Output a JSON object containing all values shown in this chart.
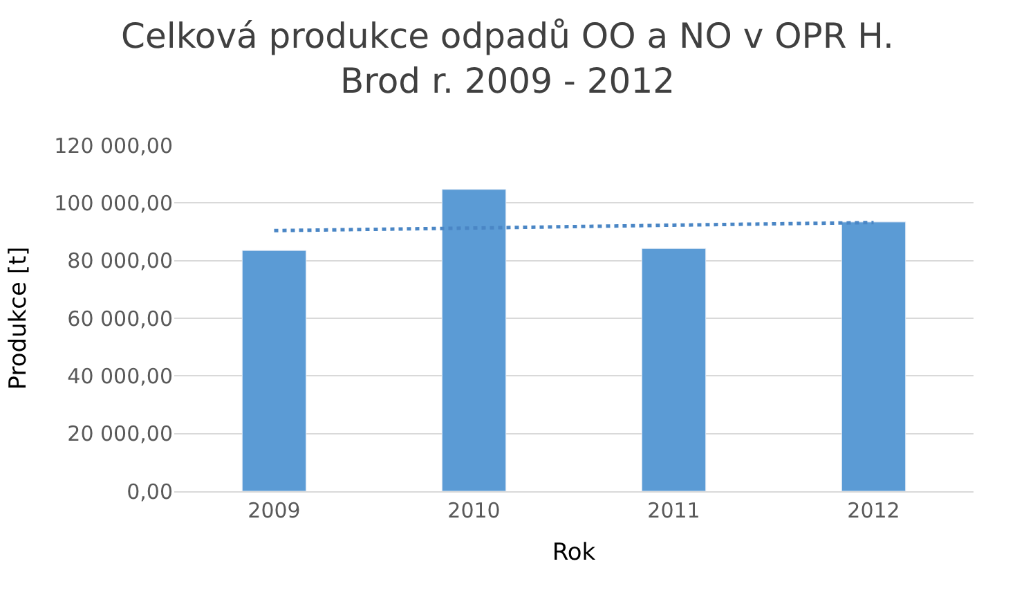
{
  "chart_data": {
    "type": "bar",
    "title": "Celková produkce odpadů OO a NO v OPR H. Brod r. 2009 - 2012",
    "xlabel": "Rok",
    "ylabel": "Produkce [t]",
    "categories": [
      "2009",
      "2010",
      "2011",
      "2012"
    ],
    "series": [
      {
        "color": "#5b9bd5",
        "values": [
          83500,
          104700,
          84200,
          93400
        ]
      },
      {
        "type": "line",
        "color": "#4a86c5",
        "line_style": "dotted",
        "marker": "none",
        "values": [
          90400,
          91300,
          92300,
          93200
        ]
      }
    ],
    "ylim": [
      0,
      120000
    ],
    "yticks": [
      {
        "value": 0,
        "label": "0,00"
      },
      {
        "value": 20000,
        "label": "20 000,00"
      },
      {
        "value": 40000,
        "label": "40 000,00"
      },
      {
        "value": 60000,
        "label": "60 000,00"
      },
      {
        "value": 80000,
        "label": "80 000,00"
      },
      {
        "value": 100000,
        "label": "100 000,00"
      },
      {
        "value": 120000,
        "label": "120 000,00"
      }
    ],
    "grid": "y"
  }
}
